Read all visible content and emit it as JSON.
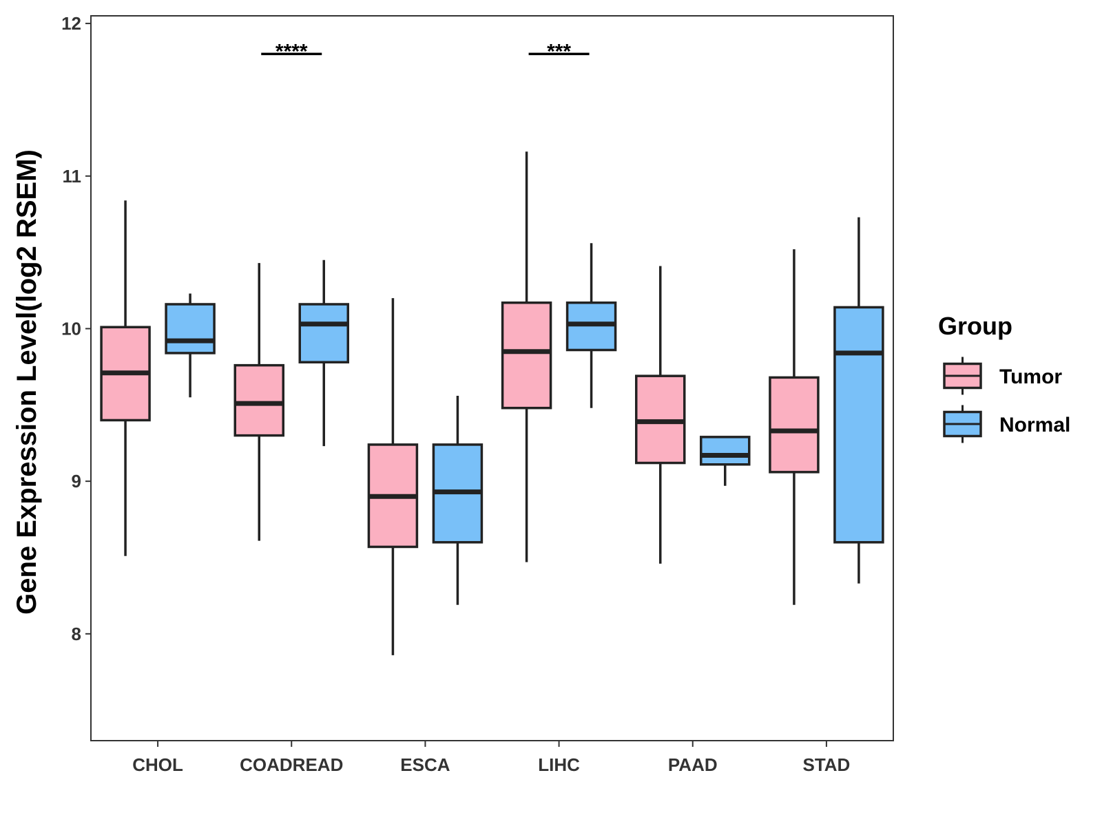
{
  "chart_data": {
    "type": "boxplot",
    "title": "",
    "xlabel": "",
    "ylabel": "Gene Expression Level(log2 RSEM)",
    "ylim": [
      7.3,
      12.05
    ],
    "yticks": [
      8,
      9,
      10,
      11,
      12
    ],
    "categories": [
      "CHOL",
      "COADREAD",
      "ESCA",
      "LIHC",
      "PAAD",
      "STAD"
    ],
    "legend": {
      "title": "Group",
      "position": "right",
      "entries": [
        "Tumor",
        "Normal"
      ]
    },
    "colors": {
      "Tumor": "#FBB0C1",
      "Normal": "#79C0F8",
      "stroke": "#222222"
    },
    "series": [
      {
        "name": "Tumor",
        "boxes": [
          {
            "category": "CHOL",
            "lower_whisker": 8.51,
            "q1": 9.4,
            "median": 9.71,
            "q3": 10.01,
            "upper_whisker": 10.84
          },
          {
            "category": "COADREAD",
            "lower_whisker": 8.61,
            "q1": 9.3,
            "median": 9.51,
            "q3": 9.76,
            "upper_whisker": 10.43
          },
          {
            "category": "ESCA",
            "lower_whisker": 7.86,
            "q1": 8.57,
            "median": 8.9,
            "q3": 9.24,
            "upper_whisker": 10.2
          },
          {
            "category": "LIHC",
            "lower_whisker": 8.47,
            "q1": 9.48,
            "median": 9.85,
            "q3": 10.17,
            "upper_whisker": 11.16
          },
          {
            "category": "PAAD",
            "lower_whisker": 8.46,
            "q1": 9.12,
            "median": 9.39,
            "q3": 9.69,
            "upper_whisker": 10.41
          },
          {
            "category": "STAD",
            "lower_whisker": 8.19,
            "q1": 9.06,
            "median": 9.33,
            "q3": 9.68,
            "upper_whisker": 10.52
          }
        ]
      },
      {
        "name": "Normal",
        "boxes": [
          {
            "category": "CHOL",
            "lower_whisker": 9.55,
            "q1": 9.84,
            "median": 9.92,
            "q3": 10.16,
            "upper_whisker": 10.23
          },
          {
            "category": "COADREAD",
            "lower_whisker": 9.23,
            "q1": 9.78,
            "median": 10.03,
            "q3": 10.16,
            "upper_whisker": 10.45
          },
          {
            "category": "ESCA",
            "lower_whisker": 8.19,
            "q1": 8.6,
            "median": 8.93,
            "q3": 9.24,
            "upper_whisker": 9.56
          },
          {
            "category": "LIHC",
            "lower_whisker": 9.48,
            "q1": 9.86,
            "median": 10.03,
            "q3": 10.17,
            "upper_whisker": 10.56
          },
          {
            "category": "PAAD",
            "lower_whisker": 8.97,
            "q1": 9.11,
            "median": 9.17,
            "q3": 9.29,
            "upper_whisker": 9.29
          },
          {
            "category": "STAD",
            "lower_whisker": 8.33,
            "q1": 8.6,
            "median": 9.84,
            "q3": 10.14,
            "upper_whisker": 10.73
          }
        ]
      }
    ],
    "annotations": [
      {
        "category": "COADREAD",
        "label": "****",
        "y": 11.8
      },
      {
        "category": "LIHC",
        "label": "***",
        "y": 11.8
      }
    ]
  }
}
